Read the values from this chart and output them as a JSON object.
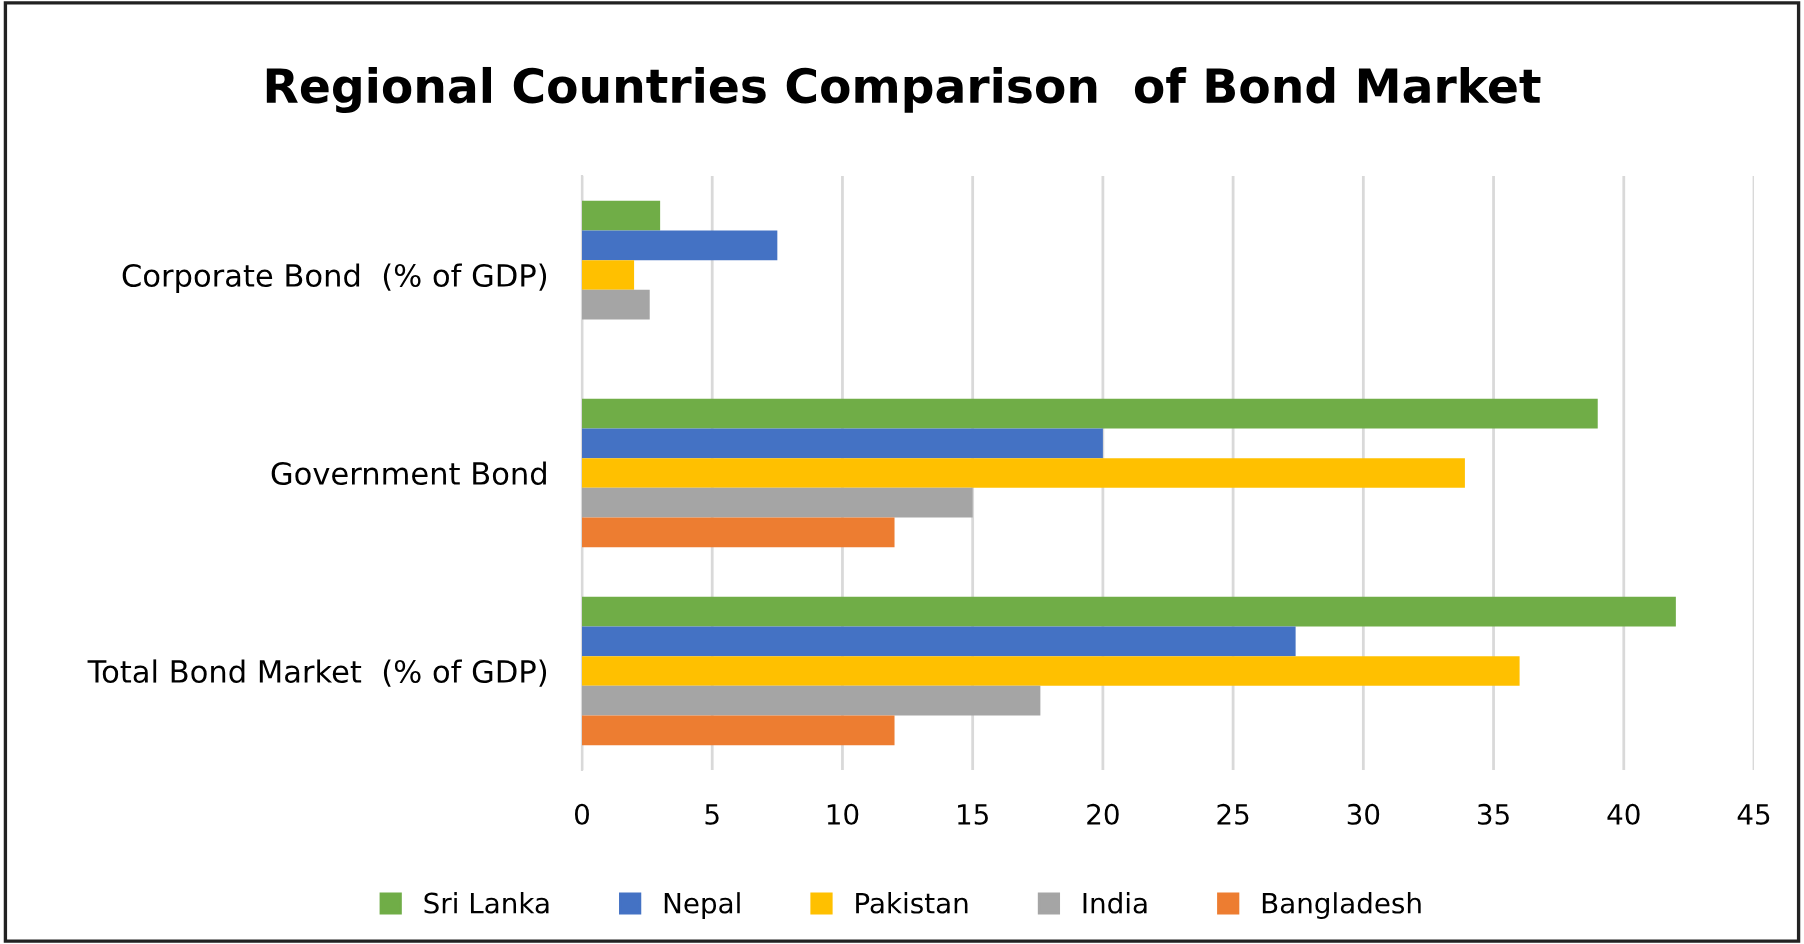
{
  "chart_data": {
    "type": "bar",
    "orientation": "horizontal",
    "title": "Regional Countries Comparison  of Bond Market",
    "categories": [
      "Corporate Bond  (% of GDP)",
      "Government Bond",
      "Total Bond Market  (% of GDP)"
    ],
    "series": [
      {
        "name": "Sri Lanka",
        "color": "#70ad47",
        "values": [
          3,
          39,
          42
        ]
      },
      {
        "name": "Nepal",
        "color": "#4472c4",
        "values": [
          7.5,
          20,
          27.4
        ]
      },
      {
        "name": "Pakistan",
        "color": "#ffc000",
        "values": [
          2,
          33.9,
          36
        ]
      },
      {
        "name": "India",
        "color": "#a5a5a5",
        "values": [
          2.6,
          15,
          17.6
        ]
      },
      {
        "name": "Bangladesh",
        "color": "#ed7d31",
        "values": [
          null,
          12,
          12
        ]
      }
    ],
    "xlim": [
      0,
      45
    ],
    "xticks": [
      0,
      5,
      10,
      15,
      20,
      25,
      30,
      35,
      40,
      45
    ],
    "grid": "x",
    "legend": "bottom"
  }
}
